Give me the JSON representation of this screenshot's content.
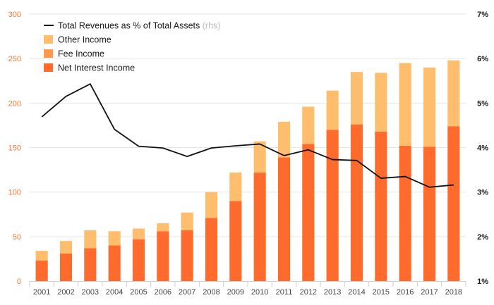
{
  "chart_data": {
    "type": "bar",
    "stacked": true,
    "categories": [
      "2001",
      "2002",
      "2003",
      "2004",
      "2005",
      "2006",
      "2007",
      "2008",
      "2009",
      "2010",
      "2011",
      "2012",
      "2013",
      "2014",
      "2015",
      "2016",
      "2017",
      "2018"
    ],
    "series": [
      {
        "name": "Net Interest Income",
        "color": "#ff6b2c",
        "values": [
          23,
          31,
          37,
          40,
          47,
          56,
          57,
          71,
          90,
          122,
          139,
          154,
          170,
          176,
          168,
          152,
          151,
          174
        ]
      },
      {
        "name": "Fee Income",
        "color": "#ff9a4d",
        "values": [
          0,
          0,
          0,
          0,
          0,
          0,
          0,
          0,
          0,
          0,
          0,
          0,
          0,
          0,
          0,
          0,
          0,
          0
        ]
      },
      {
        "name": "Other Income",
        "color": "#ffbd6e",
        "values": [
          11,
          14,
          20,
          16,
          12,
          9,
          20,
          29,
          32,
          35,
          40,
          42,
          44,
          59,
          66,
          93,
          89,
          74
        ]
      }
    ],
    "line_series": {
      "name": "Total Revenues as % of Total Assets",
      "axis": "right",
      "color": "#111111",
      "values": [
        4.69,
        5.15,
        5.43,
        4.41,
        4.03,
        3.99,
        3.8,
        3.99,
        4.04,
        4.08,
        3.82,
        3.95,
        3.73,
        3.71,
        3.31,
        3.35,
        3.11,
        3.16
      ]
    },
    "left_axis": {
      "ylim": [
        0,
        300
      ],
      "ticks": [
        "0",
        "50",
        "100",
        "150",
        "200",
        "250",
        "300"
      ]
    },
    "right_axis": {
      "ylim": [
        1,
        7
      ],
      "ticks": [
        "1%",
        "2%",
        "3%",
        "4%",
        "5%",
        "6%",
        "7%"
      ]
    },
    "legend": {
      "placement": "top-left",
      "items": [
        {
          "label": "Total Revenues as % of Total Assets",
          "note": "(rhs)",
          "kind": "line",
          "color": "#111111"
        },
        {
          "label": "Other Income",
          "kind": "box",
          "color": "#ffbd6e"
        },
        {
          "label": "Fee Income",
          "kind": "box",
          "color": "#ff9a4d"
        },
        {
          "label": "Net Interest Income",
          "kind": "box",
          "color": "#ff6b2c"
        }
      ]
    },
    "grid": true
  }
}
